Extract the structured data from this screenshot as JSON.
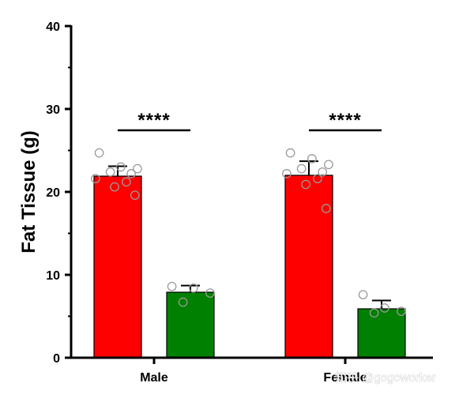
{
  "chart_data": {
    "type": "bar",
    "categories": [
      "Male",
      "Female"
    ],
    "ylabel": "Fat Tissue (g)",
    "ylim": [
      0,
      40
    ],
    "yticks": [
      0,
      10,
      20,
      30,
      40
    ],
    "grid": false,
    "series": [
      {
        "color": "#ff0000",
        "values": [
          21.9,
          22.0
        ],
        "errors": [
          1.2,
          1.7
        ],
        "points": [
          [
            24.7,
            23.0,
            22.8,
            22.4,
            22.2,
            21.6,
            21.2,
            20.6,
            19.6
          ],
          [
            24.7,
            24.0,
            23.3,
            22.8,
            22.4,
            22.2,
            21.6,
            20.9,
            18.0
          ]
        ]
      },
      {
        "color": "#008000",
        "values": [
          7.9,
          5.9
        ],
        "errors": [
          0.8,
          1.0
        ],
        "points": [
          [
            8.6,
            8.4,
            7.8,
            6.7
          ],
          [
            7.6,
            6.0,
            5.6,
            5.4
          ]
        ]
      }
    ],
    "annotations": [
      {
        "category": "Male",
        "text": "****"
      },
      {
        "category": "Female",
        "text": "****"
      }
    ]
  },
  "watermark": "知乎 @gogoworker"
}
